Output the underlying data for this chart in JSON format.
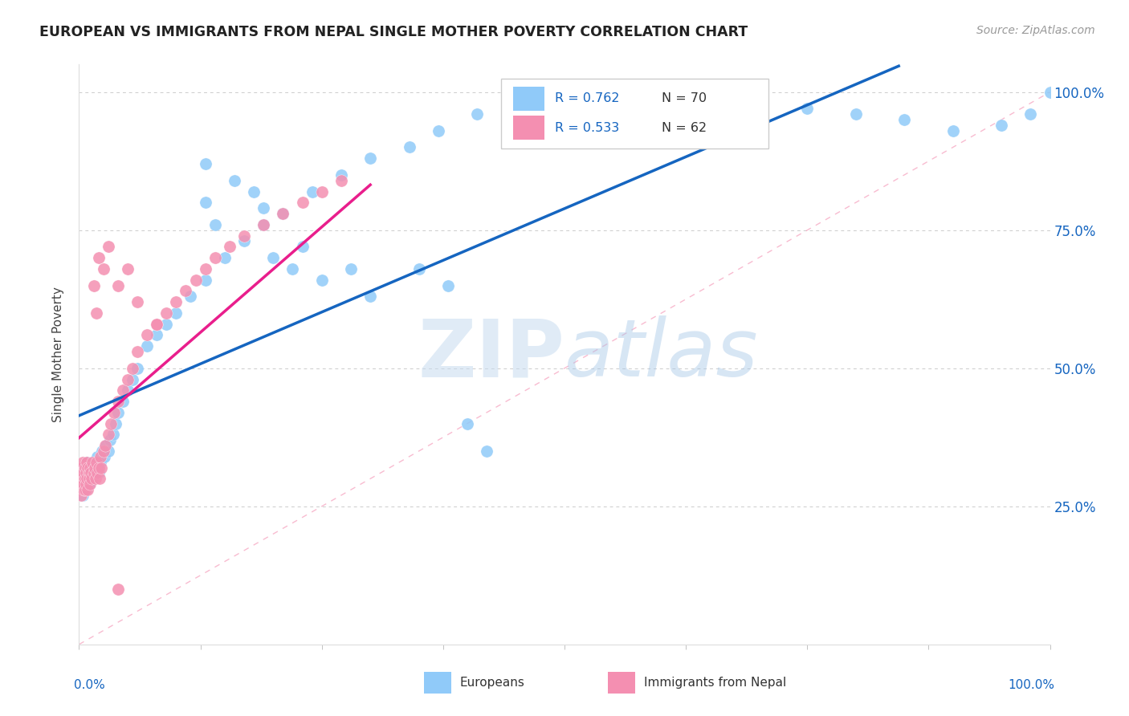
{
  "title": "EUROPEAN VS IMMIGRANTS FROM NEPAL SINGLE MOTHER POVERTY CORRELATION CHART",
  "source": "Source: ZipAtlas.com",
  "ylabel": "Single Mother Poverty",
  "color_european": "#90CAF9",
  "color_nepal": "#F48FB1",
  "color_line_european": "#1565C0",
  "color_line_nepal": "#E91E8C",
  "color_diag": "#F48FB1",
  "watermark_zip": "ZIP",
  "watermark_atlas": "atlas",
  "background_color": "#FFFFFF",
  "xlim": [
    0.0,
    1.0
  ],
  "ylim": [
    0.0,
    1.05
  ],
  "legend_eu_r": "R = 0.762",
  "legend_eu_n": "N = 70",
  "legend_np_r": "R = 0.533",
  "legend_np_n": "N = 62",
  "eu_x": [
    0.002,
    0.003,
    0.003,
    0.004,
    0.004,
    0.005,
    0.005,
    0.005,
    0.006,
    0.006,
    0.006,
    0.007,
    0.007,
    0.008,
    0.008,
    0.009,
    0.009,
    0.01,
    0.01,
    0.011,
    0.011,
    0.012,
    0.013,
    0.014,
    0.015,
    0.016,
    0.017,
    0.018,
    0.019,
    0.02,
    0.022,
    0.024,
    0.026,
    0.028,
    0.03,
    0.032,
    0.035,
    0.038,
    0.04,
    0.045,
    0.05,
    0.055,
    0.06,
    0.07,
    0.08,
    0.09,
    0.1,
    0.115,
    0.13,
    0.15,
    0.17,
    0.19,
    0.21,
    0.24,
    0.27,
    0.3,
    0.34,
    0.37,
    0.41,
    0.45,
    0.5,
    0.6,
    0.7,
    0.75,
    0.8,
    0.85,
    0.9,
    0.95,
    0.98,
    1.0
  ],
  "eu_y": [
    0.28,
    0.3,
    0.29,
    0.31,
    0.27,
    0.32,
    0.28,
    0.3,
    0.29,
    0.31,
    0.3,
    0.32,
    0.28,
    0.33,
    0.31,
    0.3,
    0.32,
    0.29,
    0.31,
    0.3,
    0.32,
    0.31,
    0.33,
    0.3,
    0.32,
    0.31,
    0.33,
    0.32,
    0.34,
    0.31,
    0.33,
    0.35,
    0.34,
    0.36,
    0.35,
    0.37,
    0.38,
    0.4,
    0.42,
    0.44,
    0.46,
    0.48,
    0.5,
    0.54,
    0.56,
    0.58,
    0.6,
    0.63,
    0.66,
    0.7,
    0.73,
    0.76,
    0.78,
    0.82,
    0.85,
    0.88,
    0.9,
    0.93,
    0.96,
    0.98,
    0.99,
    1.0,
    0.98,
    0.97,
    0.96,
    0.95,
    0.93,
    0.94,
    0.96,
    1.0
  ],
  "eu_outliers_x": [
    0.13,
    0.13,
    0.14,
    0.16,
    0.18,
    0.19,
    0.2,
    0.22,
    0.23,
    0.25,
    0.28,
    0.3,
    0.35,
    0.38,
    0.4,
    0.42
  ],
  "eu_outliers_y": [
    0.87,
    0.8,
    0.76,
    0.84,
    0.82,
    0.79,
    0.7,
    0.68,
    0.72,
    0.66,
    0.68,
    0.63,
    0.68,
    0.65,
    0.4,
    0.35
  ],
  "np_x": [
    0.001,
    0.002,
    0.002,
    0.003,
    0.003,
    0.003,
    0.004,
    0.004,
    0.005,
    0.005,
    0.005,
    0.006,
    0.006,
    0.006,
    0.007,
    0.007,
    0.008,
    0.008,
    0.009,
    0.009,
    0.01,
    0.01,
    0.011,
    0.011,
    0.012,
    0.013,
    0.014,
    0.015,
    0.016,
    0.017,
    0.018,
    0.019,
    0.02,
    0.021,
    0.022,
    0.023,
    0.025,
    0.027,
    0.03,
    0.033,
    0.036,
    0.04,
    0.045,
    0.05,
    0.055,
    0.06,
    0.07,
    0.08,
    0.09,
    0.1,
    0.11,
    0.12,
    0.13,
    0.14,
    0.155,
    0.17,
    0.19,
    0.21,
    0.23,
    0.25,
    0.27,
    0.04
  ],
  "np_y": [
    0.28,
    0.3,
    0.27,
    0.32,
    0.29,
    0.31,
    0.3,
    0.33,
    0.28,
    0.31,
    0.29,
    0.32,
    0.3,
    0.28,
    0.31,
    0.29,
    0.33,
    0.3,
    0.32,
    0.28,
    0.31,
    0.3,
    0.29,
    0.32,
    0.31,
    0.3,
    0.33,
    0.31,
    0.32,
    0.3,
    0.33,
    0.31,
    0.32,
    0.3,
    0.34,
    0.32,
    0.35,
    0.36,
    0.38,
    0.4,
    0.42,
    0.44,
    0.46,
    0.48,
    0.5,
    0.53,
    0.56,
    0.58,
    0.6,
    0.62,
    0.64,
    0.66,
    0.68,
    0.7,
    0.72,
    0.74,
    0.76,
    0.78,
    0.8,
    0.82,
    0.84,
    0.1
  ],
  "np_outliers_x": [
    0.015,
    0.018,
    0.02,
    0.025,
    0.03,
    0.04,
    0.05,
    0.06,
    0.08
  ],
  "np_outliers_y": [
    0.65,
    0.6,
    0.7,
    0.68,
    0.72,
    0.65,
    0.68,
    0.62,
    0.58
  ]
}
